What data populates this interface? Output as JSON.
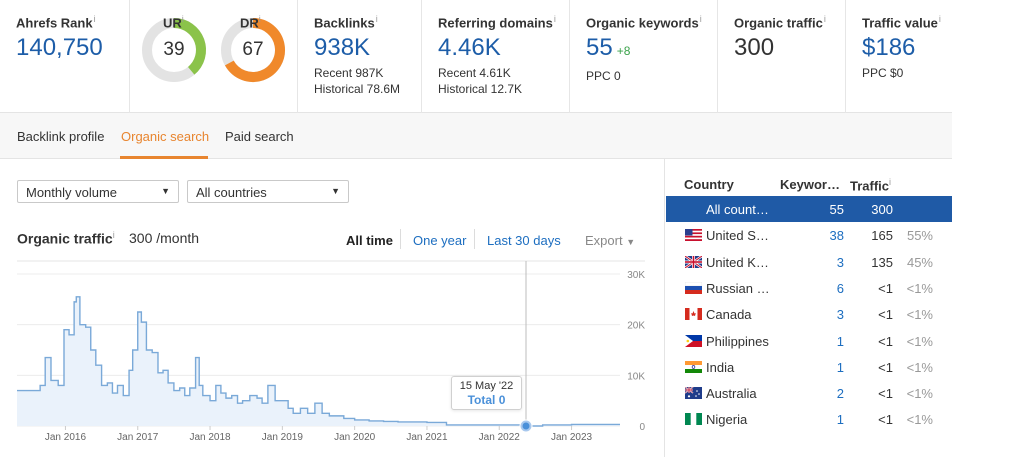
{
  "metrics": {
    "ahrefs_rank": {
      "label": "Ahrefs Rank",
      "value": "140,750"
    },
    "ur": {
      "label": "UR",
      "value": "39",
      "fraction": 0.39,
      "color": "#8bc34a"
    },
    "dr": {
      "label": "DR",
      "value": "67",
      "fraction": 0.67,
      "color": "#f0892b"
    },
    "backlinks": {
      "label": "Backlinks",
      "value": "938K",
      "recent": "Recent 987K",
      "historical": "Historical 78.6M"
    },
    "referring_domains": {
      "label": "Referring domains",
      "value": "4.46K",
      "recent": "Recent 4.61K",
      "historical": "Historical 12.7K"
    },
    "organic_keywords": {
      "label": "Organic keywords",
      "value": "55",
      "delta": "+8",
      "ppc": "PPC 0"
    },
    "organic_traffic": {
      "label": "Organic traffic",
      "value": "300"
    },
    "traffic_value": {
      "label": "Traffic value",
      "value": "$186",
      "ppc": "PPC $0"
    },
    "info_glyph": "i"
  },
  "tabs": [
    "Backlink profile",
    "Organic search",
    "Paid search"
  ],
  "active_tab": "Organic search",
  "filters": {
    "volume": "Monthly volume",
    "country": "All countries"
  },
  "chart_header": {
    "title": "Organic traffic",
    "value": "300 /month",
    "ranges": [
      "All time",
      "One year",
      "Last 30 days"
    ],
    "active_range": "All time",
    "export": "Export"
  },
  "tooltip": {
    "date": "15 May '22",
    "total": "Total 0"
  },
  "chart_data": {
    "type": "area",
    "title": "",
    "xlabel": "",
    "ylabel": "",
    "x_ticks": [
      "Jan 2016",
      "Jan 2017",
      "Jan 2018",
      "Jan 2019",
      "Jan 2020",
      "Jan 2021",
      "Jan 2022",
      "Jan 2023"
    ],
    "y_ticks": [
      "30K",
      "20K",
      "10K",
      "0"
    ],
    "ylim": [
      0,
      30000
    ],
    "xlim": [
      2015.33,
      2023.67
    ],
    "grid": true,
    "highlight": {
      "x": 2022.37,
      "y": 0
    },
    "series": [
      {
        "x": [
          2015.33,
          2015.55,
          2015.65,
          2015.72,
          2015.8,
          2015.9,
          2015.98,
          2016.05,
          2016.12,
          2016.15,
          2016.2,
          2016.28,
          2016.35,
          2016.42,
          2016.5,
          2016.58,
          2016.65,
          2016.72,
          2016.8,
          2016.88,
          2016.93,
          2017.0,
          2017.05,
          2017.12,
          2017.2,
          2017.28,
          2017.35,
          2017.42,
          2017.5,
          2017.58,
          2017.65,
          2017.72,
          2017.8,
          2017.85,
          2017.9,
          2018.0,
          2018.08,
          2018.15,
          2018.22,
          2018.3,
          2018.38,
          2018.45,
          2018.55,
          2018.65,
          2018.72,
          2018.8,
          2018.9,
          2019.0,
          2019.08,
          2019.15,
          2019.25,
          2019.35,
          2019.45,
          2019.55,
          2019.65,
          2019.75,
          2019.85,
          2020.0,
          2020.2,
          2020.4,
          2020.6,
          2020.8,
          2021.0,
          2021.2,
          2021.27,
          2021.5,
          2022.0,
          2022.37,
          2022.6,
          2023.0,
          2023.3,
          2023.67
        ],
        "y": [
          7000,
          7000,
          8000,
          13500,
          9000,
          8000,
          19000,
          18000,
          24500,
          25500,
          20000,
          19500,
          15000,
          12000,
          8000,
          8500,
          6500,
          8000,
          6000,
          11000,
          15000,
          22500,
          20500,
          15000,
          14500,
          10500,
          11000,
          8500,
          7000,
          7500,
          6000,
          7500,
          13500,
          8000,
          6000,
          5000,
          8000,
          6500,
          5500,
          6000,
          4500,
          5000,
          6000,
          5500,
          4500,
          8000,
          5000,
          5000,
          3500,
          2500,
          3500,
          2500,
          4500,
          2500,
          2000,
          2000,
          1500,
          1200,
          1000,
          900,
          800,
          800,
          700,
          700,
          200,
          200,
          200,
          0,
          200,
          300,
          300,
          300
        ]
      }
    ]
  },
  "country_table": {
    "headers": [
      "Country",
      "Keywor…",
      "Traffic"
    ],
    "rows": [
      {
        "country": "All count…",
        "keywords": "55",
        "traffic": "300",
        "pct": "",
        "flag": "none",
        "selected": true
      },
      {
        "country": "United S…",
        "keywords": "38",
        "traffic": "165",
        "pct": "55%",
        "flag": "us-flag-icon"
      },
      {
        "country": "United K…",
        "keywords": "3",
        "traffic": "135",
        "pct": "45%",
        "flag": "uk-flag-icon"
      },
      {
        "country": "Russian …",
        "keywords": "6",
        "traffic": "<1",
        "pct": "<1%",
        "flag": "russia-flag-icon"
      },
      {
        "country": "Canada",
        "keywords": "3",
        "traffic": "<1",
        "pct": "<1%",
        "flag": "canada-flag-icon"
      },
      {
        "country": "Philippines",
        "keywords": "1",
        "traffic": "<1",
        "pct": "<1%",
        "flag": "philippines-flag-icon"
      },
      {
        "country": "India",
        "keywords": "1",
        "traffic": "<1",
        "pct": "<1%",
        "flag": "india-flag-icon"
      },
      {
        "country": "Australia",
        "keywords": "2",
        "traffic": "<1",
        "pct": "<1%",
        "flag": "australia-flag-icon"
      },
      {
        "country": "Nigeria",
        "keywords": "1",
        "traffic": "<1",
        "pct": "<1%",
        "flag": "nigeria-flag-icon"
      }
    ]
  },
  "colors": {
    "accent_orange": "#e8852f",
    "link_blue": "#1d6ec0",
    "selected_row": "#1f5aa6",
    "chart_line": "#7aa9d8",
    "chart_fill": "#eaf2fb"
  }
}
